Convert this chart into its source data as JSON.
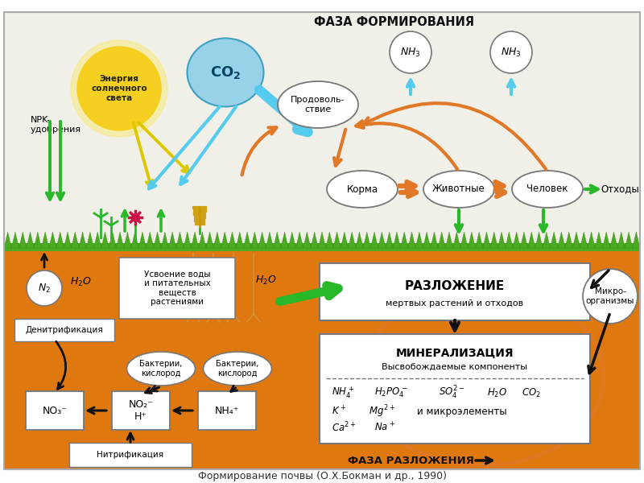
{
  "bg_color_top": "#f0efe8",
  "bg_color_soil": "#e07810",
  "grass_color": "#4aaa22",
  "grass_dark": "#2d7a10",
  "title_bottom": "Формирование почвы (О.Х.Бокман и др., 1990)",
  "sun_color": "#f5d020",
  "sun_glow": "#fce840",
  "sun_text": "Энергия\nсолнечного\nсвета",
  "co2_color": "#8dcfea",
  "npk_text": "NPK-\nудобрения",
  "fase_form_text": "ФАЗА ФОРМИРОВАНИЯ",
  "food_text": "Продоволь-\nствие",
  "feed_text": "Корма",
  "animals_text": "Животные",
  "human_text": "Человек",
  "waste_text": "Отходы",
  "nh3_text": "NH₃",
  "n2_text": "N₂",
  "h2o_text": "H₂O",
  "denitr_text": "Денитрификация",
  "nitr_text": "Нитрификация",
  "uptake_text": "Усвоение воды\nи питательных\nвеществ\nрастениями",
  "decomp_title": "РАЗЛОЖЕНИЕ",
  "decomp_sub": "мертвых растений и отходов",
  "mineral_title": "МИНЕРАЛИЗАЦИЯ",
  "mineral_sub": "Высвобождаемые компоненты",
  "micro_text": "Микро-\nорганизмы",
  "bact_text": "Бактерии,\nкислород",
  "no3_text": "NO₃⁻",
  "no2h_text": "NO₂⁻\nH⁺",
  "nh4p_text": "NH₄⁺",
  "fase_decomp_text": "ФАЗА РАЗЛОЖЕНИЯ",
  "arrow_orange": "#e07828",
  "arrow_green": "#28b828",
  "arrow_black": "#111111",
  "arrow_cyan": "#55ccee",
  "arrow_yellow": "#ddc800",
  "border_color": "#777777",
  "outer_border": "#aaaaaa",
  "white": "#ffffff"
}
